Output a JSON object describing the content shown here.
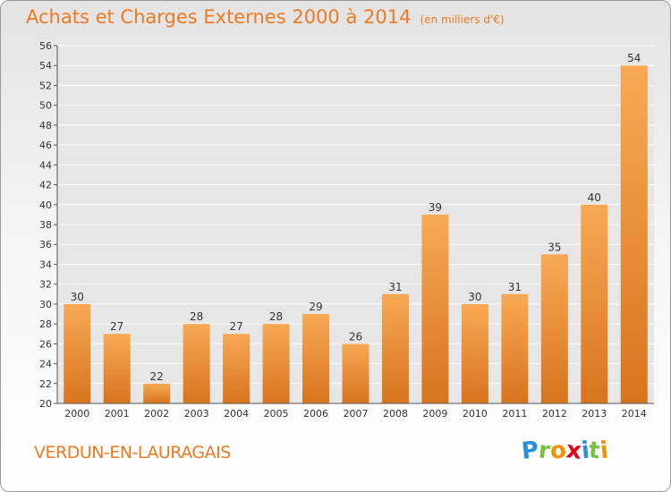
{
  "title": {
    "main": "Achats et Charges Externes 2000 à 2014",
    "unit": "(en milliers d'€)"
  },
  "commune": "VERDUN-EN-LAURAGAIS",
  "logo": {
    "text": "Proxiti",
    "letters": [
      {
        "ch": "P",
        "color": "#2b8fd6"
      },
      {
        "ch": "r",
        "color": "#7ac143"
      },
      {
        "ch": "o",
        "color": "#f39200"
      },
      {
        "ch": "x",
        "color": "#e2001a"
      },
      {
        "ch": "i",
        "color": "#2b8fd6"
      },
      {
        "ch": "t",
        "color": "#7ac143"
      },
      {
        "ch": "i",
        "color": "#f39200"
      }
    ]
  },
  "colors": {
    "accent": "#ee7a22",
    "bar_light": "#f8a955",
    "bar_dark": "#d8741e",
    "grid": "#ffffff",
    "axis_text": "#333333"
  },
  "chart_data": {
    "type": "bar",
    "categories": [
      "2000",
      "2001",
      "2002",
      "2003",
      "2004",
      "2005",
      "2006",
      "2007",
      "2008",
      "2009",
      "2010",
      "2011",
      "2012",
      "2013",
      "2014"
    ],
    "values": [
      30,
      27,
      22,
      28,
      27,
      28,
      29,
      26,
      31,
      39,
      30,
      31,
      35,
      40,
      54
    ],
    "ylim": [
      20,
      56
    ],
    "ytick_step": 2,
    "grid": true,
    "data_labels": true
  }
}
